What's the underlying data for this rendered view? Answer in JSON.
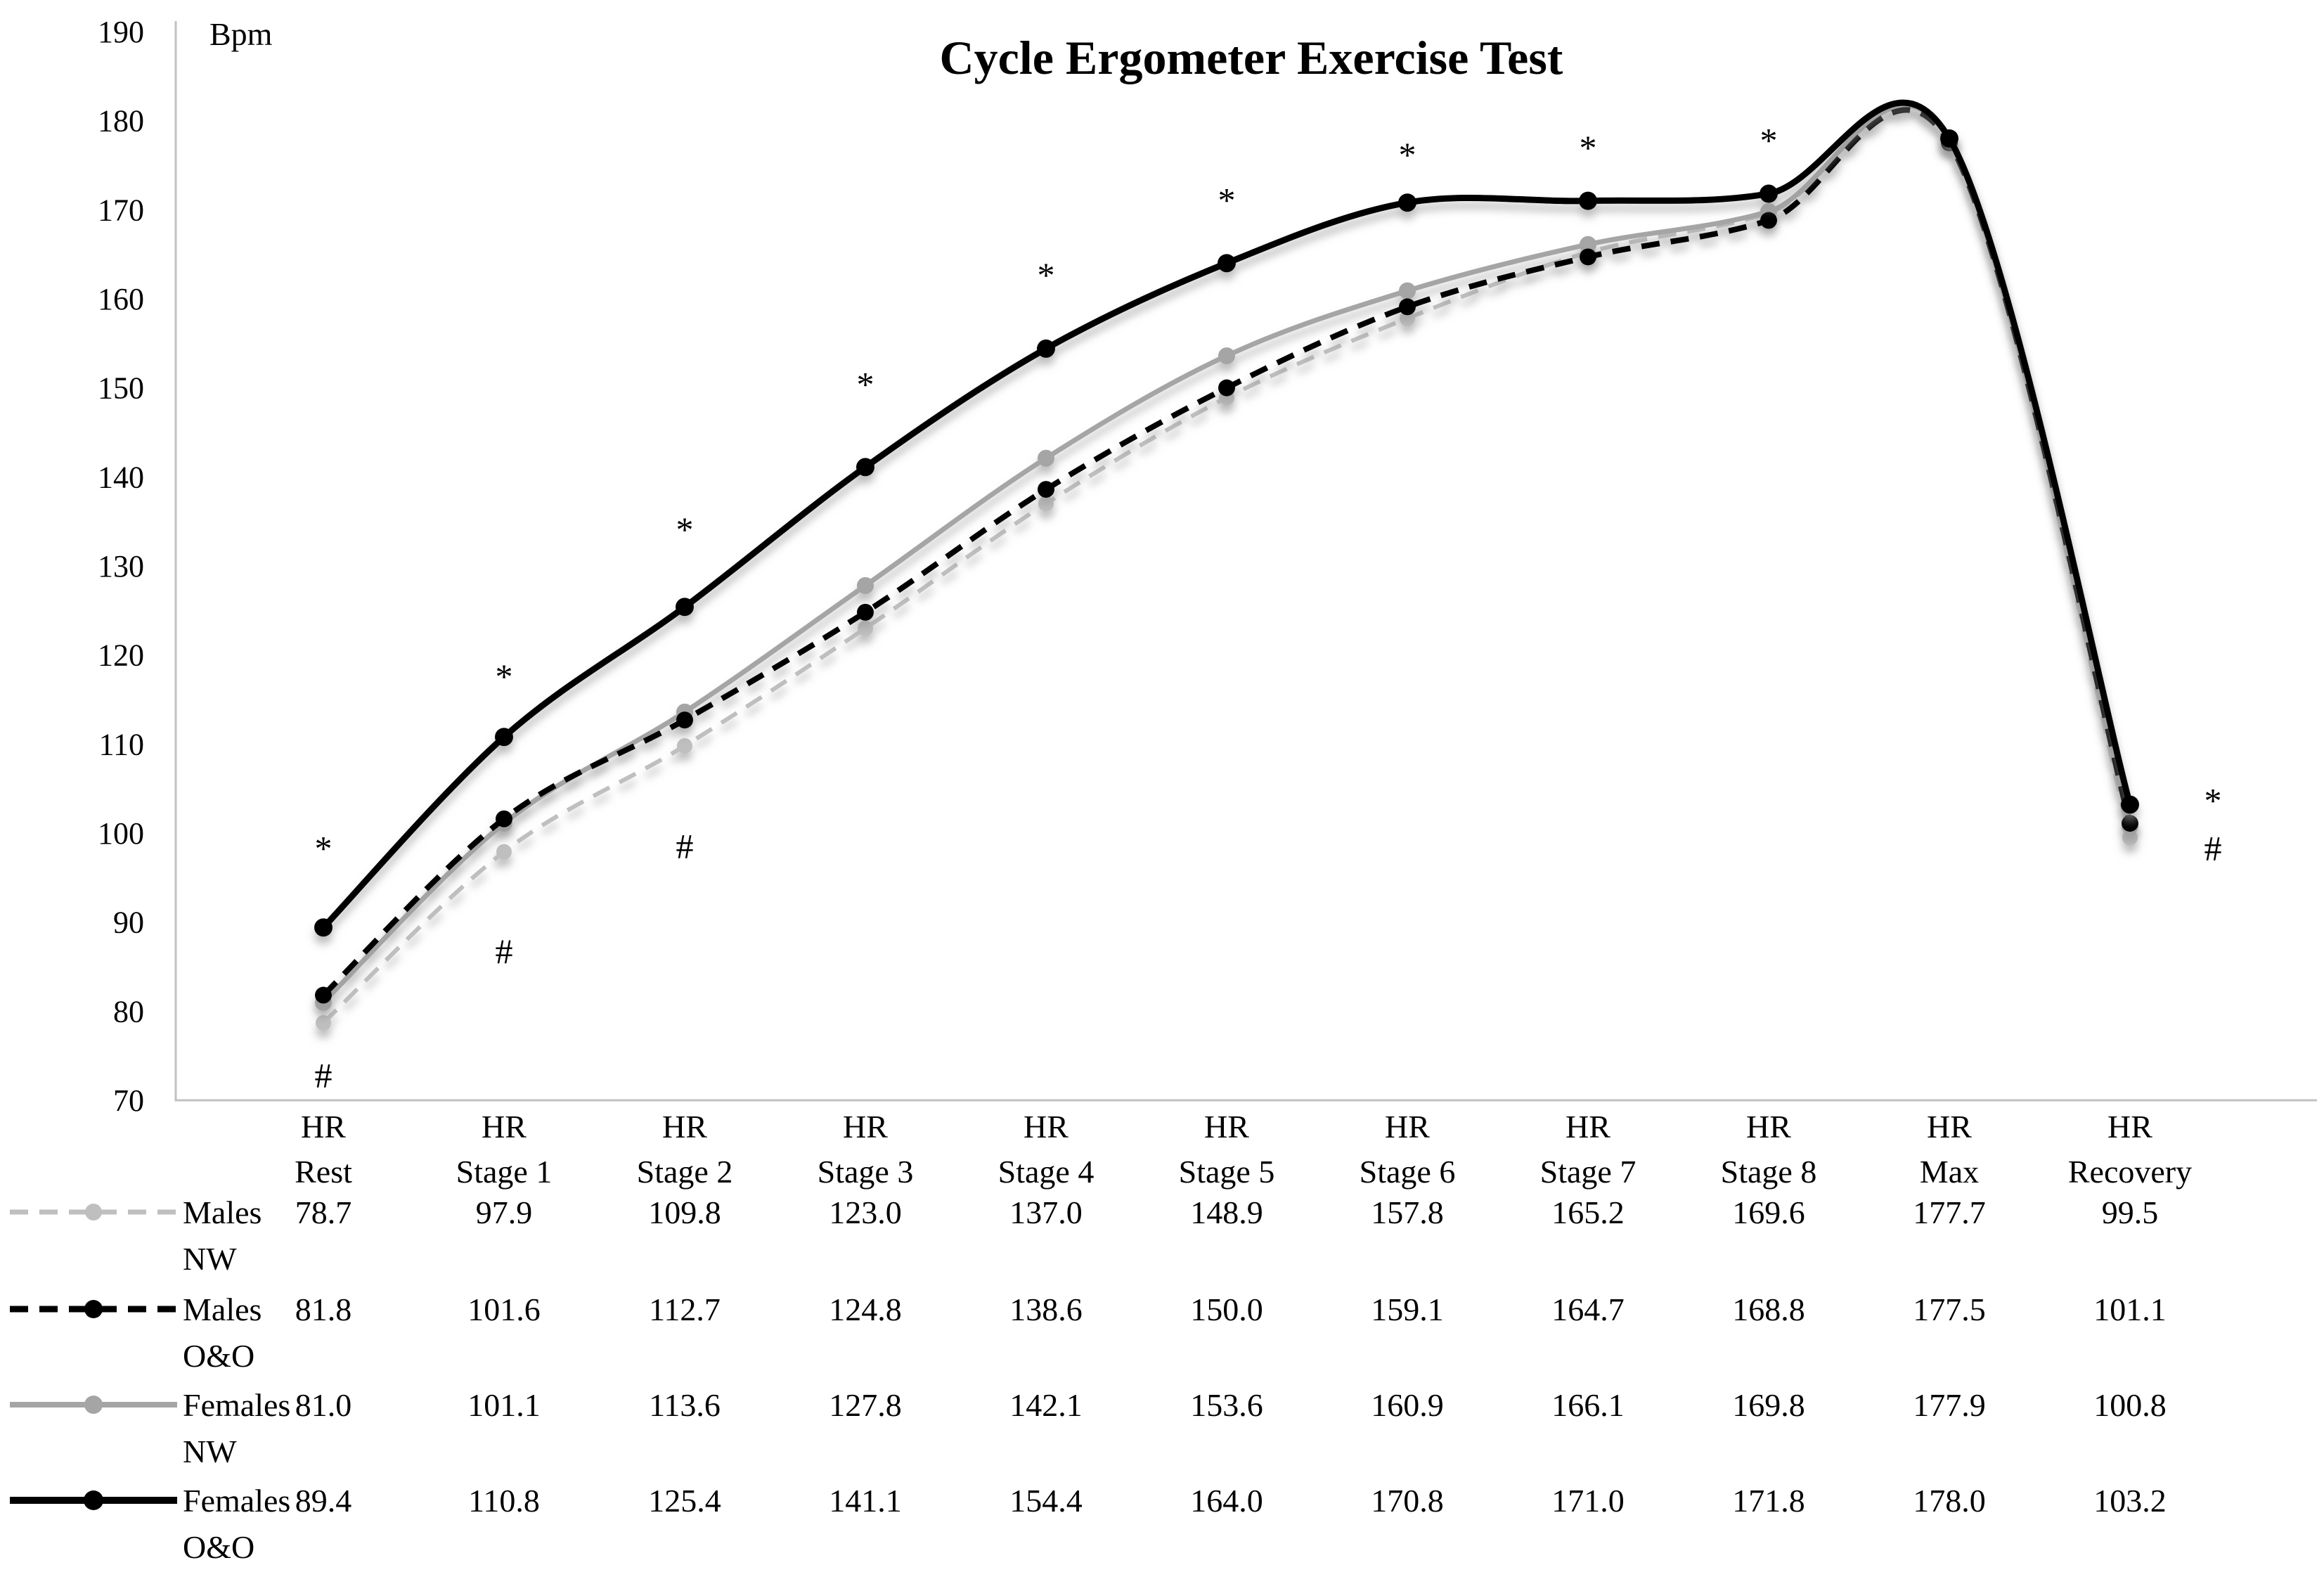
{
  "chart_data": {
    "type": "line",
    "title": "Cycle Ergometer Exercise Test",
    "y_unit": "Bpm",
    "ylabel": "Bpm",
    "ylim": [
      70,
      190
    ],
    "ytick_step": 10,
    "grid": false,
    "legend_position": "bottom-left-table",
    "x_axis": {
      "top_label": "HR",
      "categories": [
        "Rest",
        "Stage 1",
        "Stage 2",
        "Stage 3",
        "Stage 4",
        "Stage 5",
        "Stage 6",
        "Stage 7",
        "Stage 8",
        "Max",
        "Recovery"
      ]
    },
    "series": [
      {
        "name": "Males NW",
        "name_lines": [
          "Males",
          "NW"
        ],
        "color": "#bfbfbf",
        "dashed": true,
        "values": [
          78.7,
          97.9,
          109.8,
          123.0,
          137.0,
          148.9,
          157.8,
          165.2,
          169.6,
          177.7,
          99.5
        ]
      },
      {
        "name": "Males O&O",
        "name_lines": [
          "Males",
          "O&O"
        ],
        "color": "#000000",
        "dashed": true,
        "values": [
          81.8,
          101.6,
          112.7,
          124.8,
          138.6,
          150.0,
          159.1,
          164.7,
          168.8,
          177.5,
          101.1
        ]
      },
      {
        "name": "Females NW",
        "name_lines": [
          "Females",
          "NW"
        ],
        "color": "#a5a5a5",
        "dashed": false,
        "values": [
          81.0,
          101.1,
          113.6,
          127.8,
          142.1,
          153.6,
          160.9,
          166.1,
          169.8,
          177.9,
          100.8
        ]
      },
      {
        "name": "Females O&O",
        "name_lines": [
          "Females",
          "O&O"
        ],
        "color": "#000000",
        "dashed": false,
        "values": [
          89.4,
          110.8,
          125.4,
          141.1,
          154.4,
          164.0,
          170.8,
          171.0,
          171.8,
          178.0,
          103.2
        ]
      }
    ],
    "annotations": {
      "star_symbol": "*",
      "hash_symbol": "#",
      "stars": [
        {
          "category_index": 0,
          "bpm": 99.0
        },
        {
          "category_index": 1,
          "bpm": 118.3
        },
        {
          "category_index": 2,
          "bpm": 134.8
        },
        {
          "category_index": 3,
          "bpm": 151.1
        },
        {
          "category_index": 4,
          "bpm": 163.4
        },
        {
          "category_index": 5,
          "bpm": 171.8
        },
        {
          "category_index": 6,
          "bpm": 176.9
        },
        {
          "category_index": 7,
          "bpm": 177.7
        },
        {
          "category_index": 8,
          "bpm": 178.5
        },
        {
          "category_index": 10,
          "bpm": 104.4,
          "dx": 118
        }
      ],
      "hashes": [
        {
          "category_index": 0,
          "bpm": 72.9
        },
        {
          "category_index": 1,
          "bpm": 86.8
        },
        {
          "category_index": 2,
          "bpm": 98.6
        },
        {
          "category_index": 10,
          "bpm": 98.4,
          "dx": 118
        }
      ]
    }
  }
}
